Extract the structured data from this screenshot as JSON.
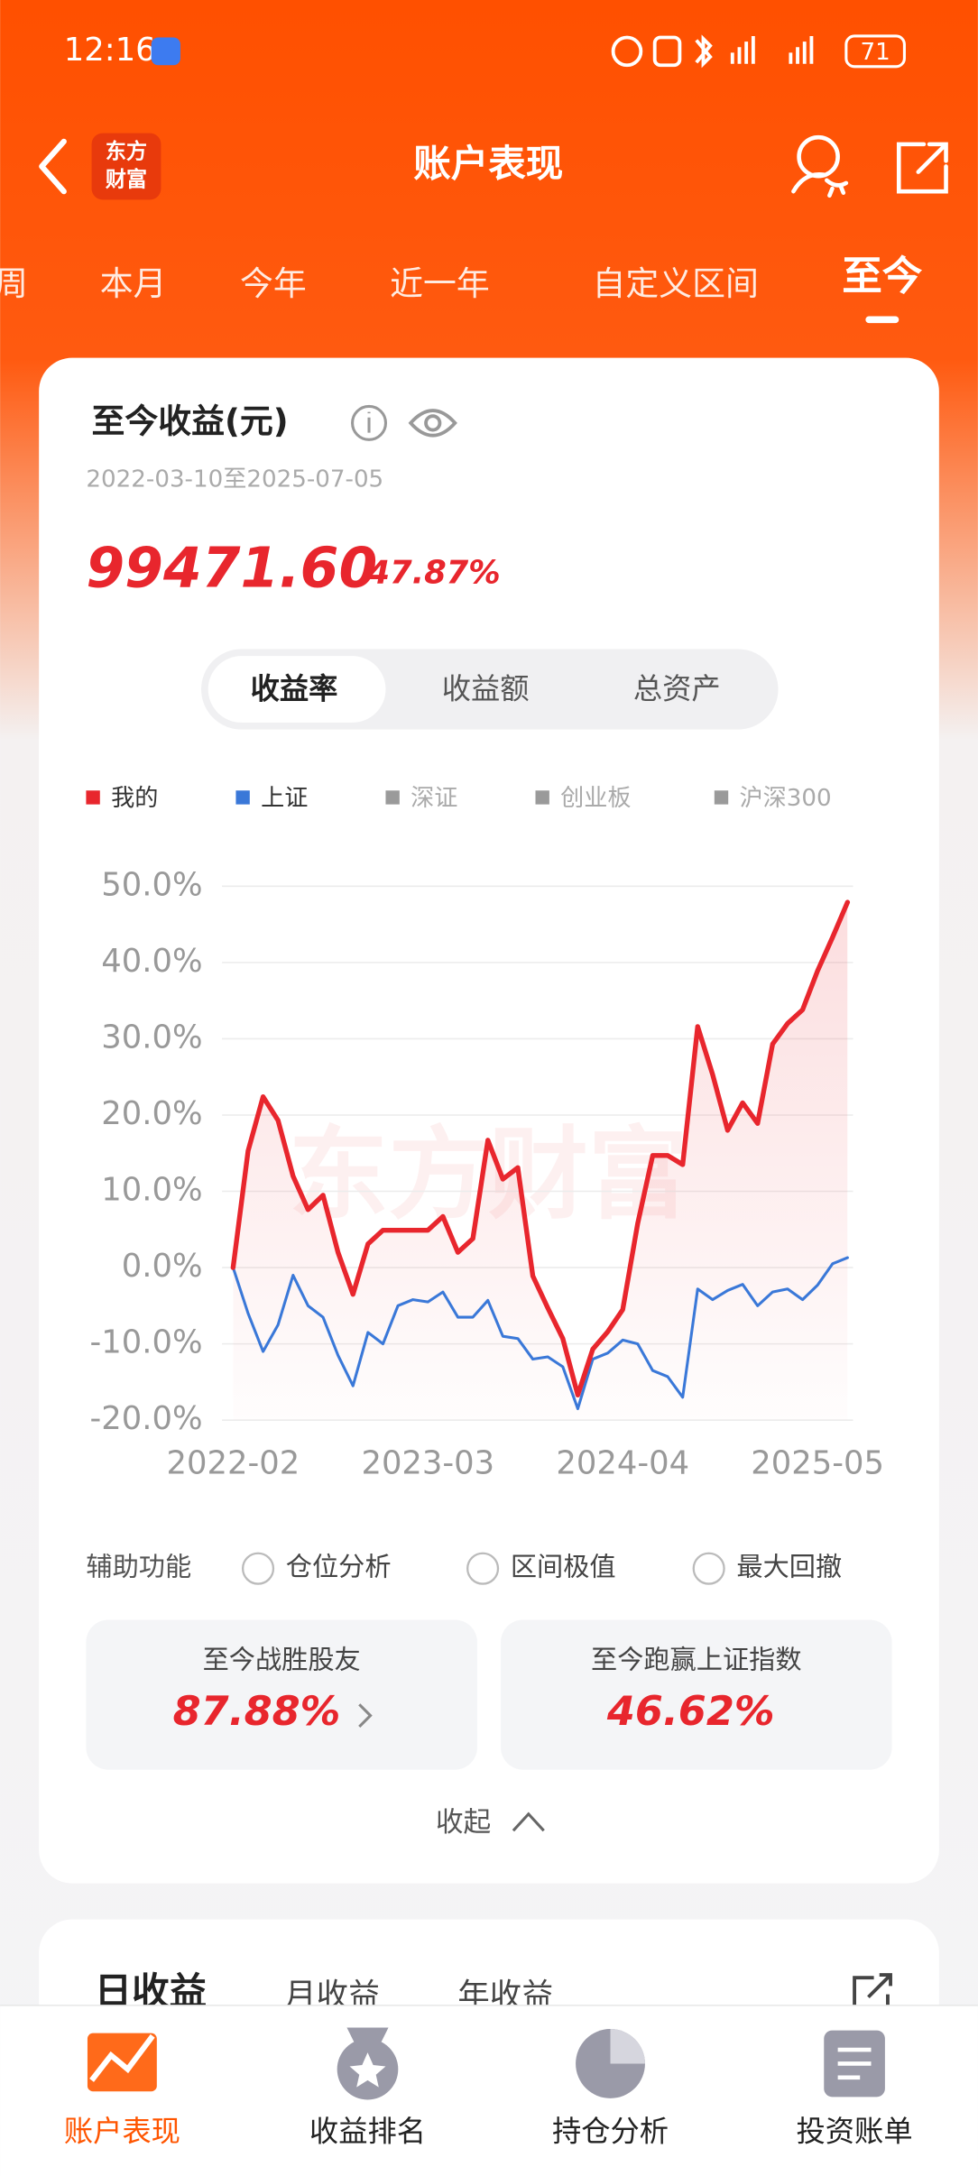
{
  "status_bar": {
    "time": "12:16",
    "battery": "71"
  },
  "header": {
    "logo": [
      "东方",
      "财富"
    ],
    "title": "账户表现"
  },
  "tabs": {
    "items": [
      "周",
      "本月",
      "今年",
      "近一年",
      "自定义区间",
      "至今"
    ],
    "active": 5
  },
  "summary": {
    "title": "至今收益(元)",
    "date_range": "2022-03-10至2025-07-05",
    "amount": "99471.60",
    "rate": "47.87%"
  },
  "segments": {
    "items": [
      "收益率",
      "收益额",
      "总资产"
    ],
    "active": 0
  },
  "chart_data": {
    "type": "line",
    "watermark": "东方财富",
    "categories": [
      "2022-02",
      null,
      null,
      null,
      null,
      null,
      null,
      null,
      null,
      null,
      null,
      null,
      null,
      "2023-03",
      null,
      null,
      null,
      null,
      null,
      null,
      null,
      null,
      null,
      null,
      null,
      null,
      "2024-04",
      null,
      null,
      null,
      null,
      null,
      null,
      null,
      null,
      null,
      null,
      null,
      null,
      "2025-05",
      null,
      null
    ],
    "series": [
      {
        "name": "我的",
        "color": "#e8262d",
        "values": [
          0,
          15.3,
          22.4,
          19.3,
          12,
          7.6,
          9.5,
          2,
          -3.5,
          3.1,
          4.9,
          4.9,
          4.9,
          4.9,
          6.7,
          2,
          3.8,
          16.7,
          11.6,
          13.1,
          -1.1,
          -5.3,
          -9.3,
          -16.7,
          -10.7,
          -8.4,
          -5.5,
          5.8,
          14.7,
          14.7,
          13.5,
          31.6,
          25.3,
          18,
          21.6,
          18.9,
          29.3,
          32,
          33.8,
          38.9,
          43.3,
          47.9
        ]
      },
      {
        "name": "上证",
        "color": "#3a78d8",
        "values": [
          0,
          -6,
          -11,
          -7.5,
          -1,
          -5,
          -6.5,
          -11.5,
          -15.5,
          -8.5,
          -10,
          -5,
          -4.2,
          -4.5,
          -3.2,
          -6.5,
          -6.5,
          -4.3,
          -9,
          -9.3,
          -12,
          -11.7,
          -13,
          -18.5,
          -12,
          -11.2,
          -9.5,
          -10,
          -13.5,
          -14.3,
          -17,
          -2.8,
          -4.2,
          -3,
          -2.2,
          -5,
          -3.2,
          -2.8,
          -4.2,
          -2.3,
          0.5,
          1.3
        ]
      }
    ],
    "inactive_series": [
      "深证",
      "创业板",
      "沪深300"
    ],
    "inactive_color": "#9a9a9a",
    "ylim": [
      -20,
      50
    ],
    "yticks": [
      {
        "value": -20,
        "label": "-20.0%"
      },
      {
        "value": -10,
        "label": "-10.0%"
      },
      {
        "value": 0,
        "label": "0.0%"
      },
      {
        "value": 10,
        "label": "10.0%"
      },
      {
        "value": 20,
        "label": "20.0%"
      },
      {
        "value": 30,
        "label": "30.0%"
      },
      {
        "value": 40,
        "label": "40.0%"
      },
      {
        "value": 50,
        "label": "50.0%"
      }
    ],
    "grid": true
  },
  "tools": {
    "label": "辅助功能",
    "options": [
      "仓位分析",
      "区间极值",
      "最大回撤"
    ]
  },
  "stats": [
    {
      "label": "至今战胜股友",
      "value": "87.88%"
    },
    {
      "label": "至今跑赢上证指数",
      "value": "46.62%"
    }
  ],
  "collapse": "收起",
  "next_card": {
    "tabs": [
      "日收益",
      "月收益",
      "年收益"
    ]
  },
  "bottom_nav": {
    "items": [
      "账户表现",
      "收益排名",
      "持仓分析",
      "投资账单"
    ],
    "active": 0
  }
}
